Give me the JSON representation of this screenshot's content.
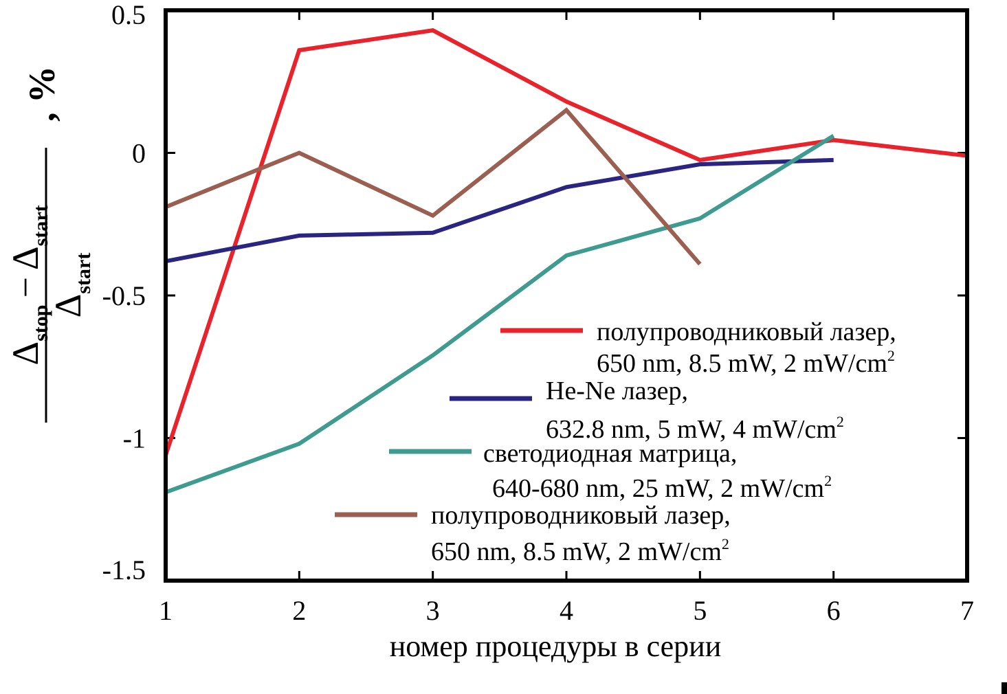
{
  "chart_data": {
    "type": "line",
    "xlabel": "номер процедуры в серии",
    "ylabel": {
      "numerator": {
        "a": "Δ",
        "a_sub": "stop",
        "minus": "−",
        "b": "Δ",
        "b_sub": "start"
      },
      "denominator": {
        "a": "Δ",
        "a_sub": "start"
      },
      "unit": ", %"
    },
    "xlim": [
      1,
      7
    ],
    "ylim": [
      -1.5,
      0.5
    ],
    "xticks": [
      1,
      2,
      3,
      4,
      5,
      6,
      7
    ],
    "xtick_labels": [
      "1",
      "2",
      "3",
      "4",
      "5",
      "6",
      "7"
    ],
    "yticks": [
      0.5,
      0,
      -0.5,
      -1,
      -1.5
    ],
    "ytick_labels": [
      "0.5",
      "0",
      "-0.5",
      "-1",
      "-1.5"
    ],
    "series": [
      {
        "name": "полупроводниковый лазер, 650 nm, 8.5 mW, 2 mW/cm2",
        "color": "#e8232b",
        "x": [
          1,
          2,
          3,
          4,
          5,
          6,
          7
        ],
        "values": [
          -1.06,
          0.36,
          0.43,
          0.18,
          -0.025,
          0.045,
          -0.01
        ]
      },
      {
        "name": "He-Ne лазер, 632.8 nm, 5 mW, 4 mW/cm2",
        "color": "#2b2582",
        "x": [
          1,
          2,
          3,
          4,
          5,
          6
        ],
        "values": [
          -0.38,
          -0.29,
          -0.28,
          -0.12,
          -0.04,
          -0.025
        ]
      },
      {
        "name": "светодиодная матрица, 640-680 nm, 25 mW, 2 mW/cm2",
        "color": "#3f9a8f",
        "x": [
          1,
          2,
          3,
          4,
          5,
          6
        ],
        "values": [
          -1.19,
          -1.02,
          -0.71,
          -0.36,
          -0.23,
          0.06
        ]
      },
      {
        "name": "полупроводниковый лазер, 650 nm, 8.5 mW, 2 mW/cm2",
        "color": "#9b5f52",
        "x": [
          1,
          2,
          3,
          4,
          5
        ],
        "values": [
          -0.19,
          0.0,
          -0.22,
          0.15,
          -0.39
        ]
      }
    ],
    "legend": [
      {
        "line1": "полупроводниковый лазер,",
        "line2": "650 nm,  8.5 mW, 2 mW/cm",
        "sup": "2",
        "color": "#e8232b"
      },
      {
        "line1": "He-Ne  лазер,",
        "line2": "632.8 nm, 5 mW, 4 mW/cm",
        "sup": "2",
        "color": "#2b2582"
      },
      {
        "line1": "светодиодная матрица,",
        "line2": "640-680 nm, 25 mW, 2 mW/cm",
        "sup": "2",
        "color": "#3f9a8f"
      },
      {
        "line1": "полупроводниковый лазер,",
        "line2": "650 nm,  8.5 mW, 2 mW/cm",
        "sup": "2",
        "color": "#9b5f52"
      }
    ],
    "legend_position": "lower-right inside"
  }
}
